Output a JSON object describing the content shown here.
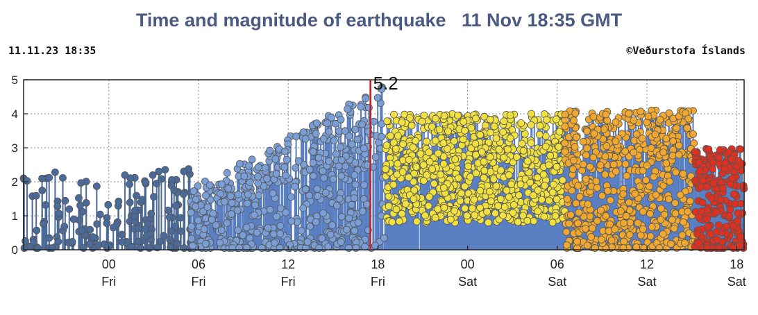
{
  "title": "Time and magnitude of earthquake   11 Nov 18:35 GMT",
  "header": {
    "timestamp": "11.11.23 18:35",
    "credit": "©Veðurstofa Íslands"
  },
  "colors": {
    "older": "#4a6a9a",
    "mid": "#7a9ed6",
    "recent_yellow": "#f0e040",
    "recent_orange": "#f0a830",
    "latest_red": "#e03020",
    "stem": "#5a7fc2",
    "marker_line": "#c02020",
    "title": "#4a5a82"
  },
  "chart_data": {
    "type": "scatter",
    "title": "",
    "xlabel": "",
    "ylabel": "",
    "ylim": [
      0,
      5
    ],
    "yticks": [
      "0",
      "1",
      "2",
      "3",
      "4",
      "5"
    ],
    "xticks": [
      {
        "hour": 24,
        "label": "00",
        "day": "Fri"
      },
      {
        "hour": 30,
        "label": "06",
        "day": "Fri"
      },
      {
        "hour": 36,
        "label": "12",
        "day": "Fri"
      },
      {
        "hour": 42,
        "label": "18",
        "day": "Fri"
      },
      {
        "hour": 48,
        "label": "00",
        "day": "Sat"
      },
      {
        "hour": 54,
        "label": "06",
        "day": "Sat"
      },
      {
        "hour": 60,
        "label": "12",
        "day": "Sat"
      },
      {
        "hour": 66,
        "label": "18",
        "day": "Sat"
      }
    ],
    "xlim_hours": [
      18.3,
      66.5
    ],
    "grid": true,
    "marker_event": {
      "hour": 41.5,
      "magnitude": 5.2,
      "label": "5.2"
    },
    "phases": [
      {
        "name": "older",
        "from": 18.3,
        "to": 29.5,
        "color": "#4a6a9a",
        "max_mag": 2.4
      },
      {
        "name": "mid",
        "from": 29.5,
        "to": 42.5,
        "color": "#7a9ed6",
        "max_mag": 4.9
      },
      {
        "name": "recent_yellow",
        "from": 42.5,
        "to": 54.5,
        "color": "#f0e040",
        "max_mag": 4.6
      },
      {
        "name": "recent_orange",
        "from": 54.5,
        "to": 63.2,
        "color": "#f0a830",
        "max_mag": 4.1
      },
      {
        "name": "latest_red",
        "from": 63.2,
        "to": 66.5,
        "color": "#e03020",
        "max_mag": 3.0
      }
    ]
  }
}
